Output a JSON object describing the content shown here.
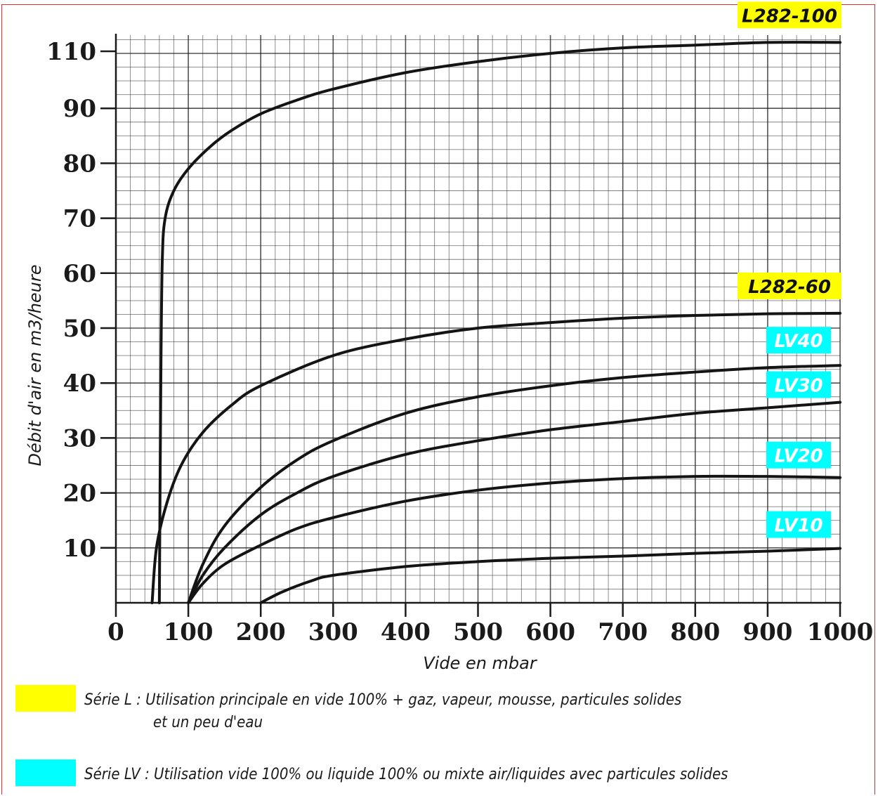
{
  "colors": {
    "serie_l": "#ffff00",
    "serie_lv": "#00ffff",
    "grid": "#1a1a1a",
    "curve": "#141414",
    "frame": "#e03030"
  },
  "chart_data": {
    "type": "line",
    "title": "",
    "xlabel": "Vide en mbar",
    "ylabel": "Débit d'air en m3/heure",
    "xlim": [
      0,
      1000
    ],
    "ylim": [
      0,
      115
    ],
    "grid": true,
    "x_ticks": [
      "0",
      "100",
      "200",
      "300",
      "400",
      "500",
      "600",
      "700",
      "800",
      "900",
      "1000"
    ],
    "y_ticks": [
      "10",
      "20",
      "30",
      "40",
      "50",
      "60",
      "70",
      "80",
      "90",
      "110"
    ],
    "series": [
      {
        "name": "L282-100",
        "label_color": "serie_l",
        "points": [
          [
            60,
            0
          ],
          [
            62,
            40
          ],
          [
            64,
            62
          ],
          [
            68,
            70
          ],
          [
            80,
            75
          ],
          [
            100,
            79
          ],
          [
            130,
            83
          ],
          [
            160,
            86
          ],
          [
            200,
            89
          ],
          [
            250,
            91.5
          ],
          [
            300,
            93.5
          ],
          [
            400,
            96.5
          ],
          [
            500,
            98.5
          ],
          [
            600,
            100
          ],
          [
            700,
            101
          ],
          [
            800,
            101.5
          ],
          [
            900,
            102
          ],
          [
            1000,
            102
          ]
        ]
      },
      {
        "name": "L282-60",
        "label_color": "serie_l",
        "points": [
          [
            50,
            0
          ],
          [
            56,
            10
          ],
          [
            70,
            18
          ],
          [
            90,
            25
          ],
          [
            120,
            31
          ],
          [
            160,
            36
          ],
          [
            200,
            39.5
          ],
          [
            300,
            45
          ],
          [
            400,
            48
          ],
          [
            500,
            50
          ],
          [
            600,
            51
          ],
          [
            700,
            51.8
          ],
          [
            800,
            52.3
          ],
          [
            900,
            52.6
          ],
          [
            1000,
            52.7
          ]
        ]
      },
      {
        "name": "LV40",
        "label_color": "serie_lv",
        "points": [
          [
            100,
            0
          ],
          [
            120,
            7
          ],
          [
            150,
            14
          ],
          [
            200,
            21
          ],
          [
            250,
            26
          ],
          [
            300,
            29.5
          ],
          [
            400,
            34.5
          ],
          [
            500,
            37.5
          ],
          [
            600,
            39.5
          ],
          [
            700,
            41
          ],
          [
            800,
            42
          ],
          [
            900,
            42.8
          ],
          [
            1000,
            43.2
          ]
        ]
      },
      {
        "name": "LV30",
        "label_color": "serie_lv",
        "points": [
          [
            100,
            0
          ],
          [
            120,
            5
          ],
          [
            150,
            10
          ],
          [
            200,
            16
          ],
          [
            250,
            20
          ],
          [
            300,
            23
          ],
          [
            400,
            27
          ],
          [
            500,
            29.5
          ],
          [
            600,
            31.5
          ],
          [
            700,
            33
          ],
          [
            800,
            34.5
          ],
          [
            900,
            35.5
          ],
          [
            1000,
            36.5
          ]
        ]
      },
      {
        "name": "LV20",
        "label_color": "serie_lv",
        "points": [
          [
            100,
            0
          ],
          [
            120,
            3.5
          ],
          [
            150,
            7
          ],
          [
            200,
            10.5
          ],
          [
            250,
            13.5
          ],
          [
            300,
            15.5
          ],
          [
            400,
            18.5
          ],
          [
            500,
            20.5
          ],
          [
            600,
            21.8
          ],
          [
            700,
            22.6
          ],
          [
            800,
            23
          ],
          [
            900,
            23
          ],
          [
            1000,
            22.8
          ]
        ]
      },
      {
        "name": "LV10",
        "label_color": "serie_lv",
        "points": [
          [
            200,
            0
          ],
          [
            230,
            2
          ],
          [
            270,
            4
          ],
          [
            300,
            5
          ],
          [
            400,
            6.6
          ],
          [
            500,
            7.5
          ],
          [
            600,
            8.1
          ],
          [
            700,
            8.5
          ],
          [
            800,
            9
          ],
          [
            900,
            9.4
          ],
          [
            1000,
            9.9
          ]
        ]
      }
    ]
  },
  "legend": {
    "items": [
      {
        "color_key": "serie_l",
        "line1": "Série L : Utilisation principale en vide 100% + gaz, vapeur, mousse, particules solides",
        "line2": "et un peu d'eau"
      },
      {
        "color_key": "serie_lv",
        "line1": "Série LV : Utilisation vide 100% ou liquide 100% ou mixte air/liquides avec particules solides",
        "line2": ""
      }
    ]
  }
}
